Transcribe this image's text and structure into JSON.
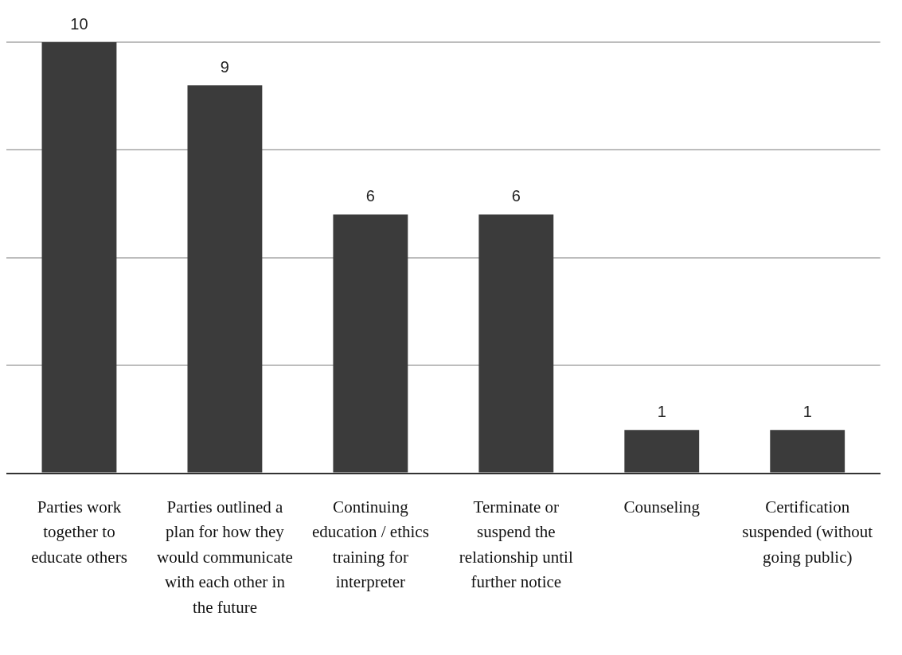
{
  "chart_data": {
    "type": "bar",
    "categories": [
      "Parties work together to educate others",
      "Parties outlined a plan for how they would communicate with each other in the future",
      "Continuing education / ethics training for interpreter",
      "Terminate or suspend the relationship until further notice",
      "Counseling",
      "Certification suspended (without going public)"
    ],
    "values": [
      10,
      9,
      6,
      6,
      1,
      1
    ],
    "color": "#3b3b3b",
    "ylim": [
      0,
      10
    ],
    "yticks": [
      {
        "value": 0,
        "label": null
      },
      {
        "value": 2.5,
        "label": null
      },
      {
        "value": 5,
        "label": null
      },
      {
        "value": 7.5,
        "label": null
      },
      {
        "value": 10,
        "label": null
      }
    ],
    "tick_labels": "x",
    "grid": "y",
    "data_labels": true,
    "legend": false
  }
}
